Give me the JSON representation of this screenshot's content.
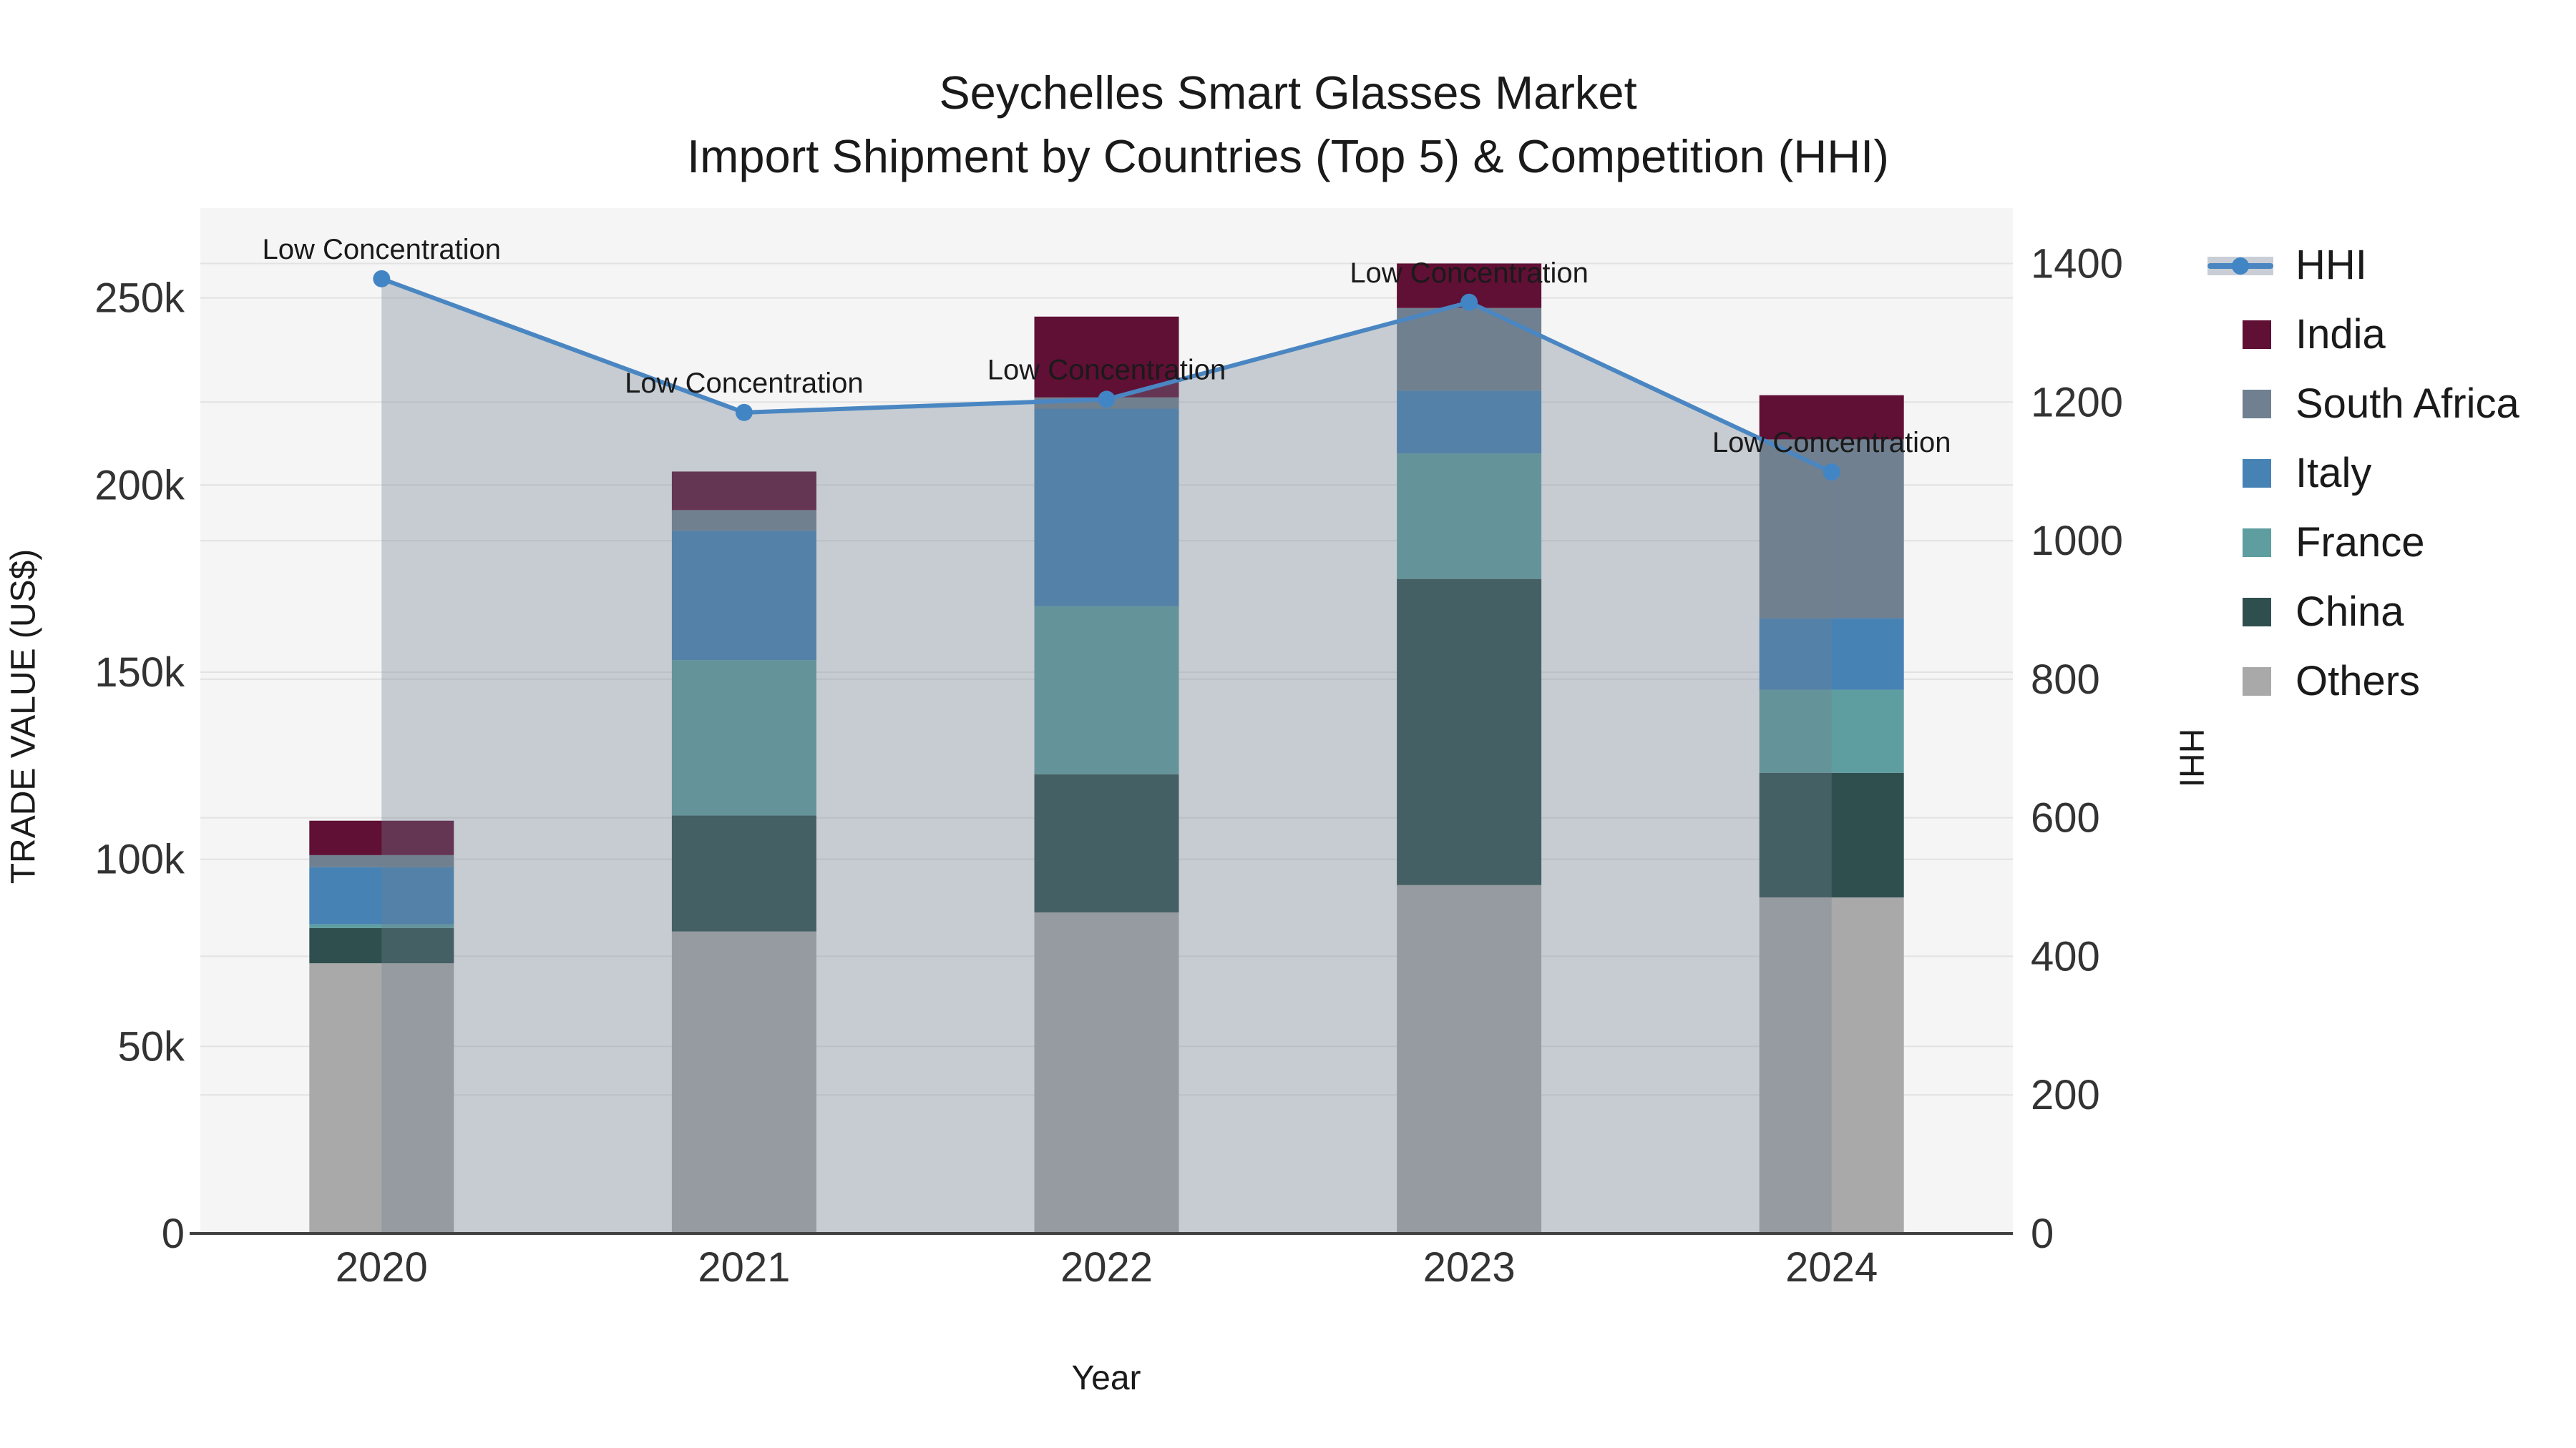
{
  "title": {
    "line1": "Seychelles Smart Glasses Market",
    "line2": "Import Shipment by Countries (Top 5) & Competition (HHI)"
  },
  "annotation_label": "Low Concentration",
  "colors": {
    "india": "#600F35",
    "south_africa": "#708090",
    "italy": "#4682B4",
    "france": "#5F9EA0",
    "china": "#2F4F4F",
    "others": "#A9A9A9",
    "hhi_line": "#4A86C2",
    "hhi_marker": "#4285C4",
    "hhi_area_fill": "rgba(112,128,144,0.35)",
    "plot_background": "#F5F5F5",
    "gridline": "#E2E2E2",
    "baseline": "#424242",
    "text": "#1A1A1A",
    "tick_text": "#333333"
  },
  "axes": {
    "x": {
      "title": "Year",
      "categories": [
        "2020",
        "2021",
        "2022",
        "2023",
        "2024"
      ]
    },
    "y_left": {
      "title": "TRADE VALUE (US$)",
      "tick_labels": [
        "0",
        "50k",
        "100k",
        "150k",
        "200k",
        "250k"
      ],
      "tick_values": [
        0,
        50000,
        100000,
        150000,
        200000,
        250000
      ],
      "range": [
        0,
        274000
      ]
    },
    "y_right": {
      "title": "HHI",
      "tick_labels": [
        "0",
        "200",
        "400",
        "600",
        "800",
        "1000",
        "1200",
        "1400"
      ],
      "tick_values": [
        0,
        200,
        400,
        600,
        800,
        1000,
        1200,
        1400
      ],
      "range": [
        0,
        1480
      ]
    }
  },
  "legend": {
    "items": [
      {
        "label": "HHI",
        "type": "line",
        "color": "#4A86C2"
      },
      {
        "label": "India",
        "type": "swatch",
        "color": "#600F35"
      },
      {
        "label": "South Africa",
        "type": "swatch",
        "color": "#708090"
      },
      {
        "label": "Italy",
        "type": "swatch",
        "color": "#4682B4"
      },
      {
        "label": "France",
        "type": "swatch",
        "color": "#5F9EA0"
      },
      {
        "label": "China",
        "type": "swatch",
        "color": "#2F4F4F"
      },
      {
        "label": "Others",
        "type": "swatch",
        "color": "#A9A9A9"
      }
    ]
  },
  "chart_data": {
    "type": "bar+line",
    "title": "Seychelles Smart Glasses Market — Import Shipment by Countries (Top 5) & Competition (HHI)",
    "categories": [
      "2020",
      "2021",
      "2022",
      "2023",
      "2024"
    ],
    "xlabel": "Year",
    "ylabel": "TRADE VALUE (US$)",
    "y2label": "HHI",
    "ylim": [
      0,
      274000
    ],
    "y2lim": [
      0,
      1480
    ],
    "grid": true,
    "legend_position": "right",
    "stack_order_bottom_to_top": [
      "Others",
      "China",
      "France",
      "Italy",
      "South Africa",
      "India"
    ],
    "series": [
      {
        "name": "India",
        "type": "bar",
        "color": "#600F35",
        "values": [
          9200,
          10300,
          21600,
          11900,
          11800
        ]
      },
      {
        "name": "South Africa",
        "type": "bar",
        "color": "#708090",
        "values": [
          3200,
          5500,
          3000,
          22100,
          47800
        ]
      },
      {
        "name": "Italy",
        "type": "bar",
        "color": "#4682B4",
        "values": [
          15300,
          34600,
          52800,
          16800,
          19100
        ]
      },
      {
        "name": "France",
        "type": "bar",
        "color": "#5F9EA0",
        "values": [
          1000,
          41500,
          44900,
          33500,
          22200
        ]
      },
      {
        "name": "China",
        "type": "bar",
        "color": "#2F4F4F",
        "values": [
          9400,
          31000,
          36900,
          81800,
          33300
        ]
      },
      {
        "name": "Others",
        "type": "bar",
        "color": "#A9A9A9",
        "values": [
          72200,
          80700,
          85800,
          93100,
          89800
        ]
      }
    ],
    "stacked_totals": [
      110300,
      203600,
      245000,
      259200,
      224000
    ],
    "hhi": {
      "name": "HHI",
      "type": "line+area",
      "axis": "right",
      "line_color": "#4A86C2",
      "area_fill": "rgba(112,128,144,0.35)",
      "values": [
        1378,
        1185,
        1204,
        1344,
        1099
      ],
      "point_annotations": [
        "Low Concentration",
        "Low Concentration",
        "Low Concentration",
        "Low Concentration",
        "Low Concentration"
      ]
    }
  }
}
